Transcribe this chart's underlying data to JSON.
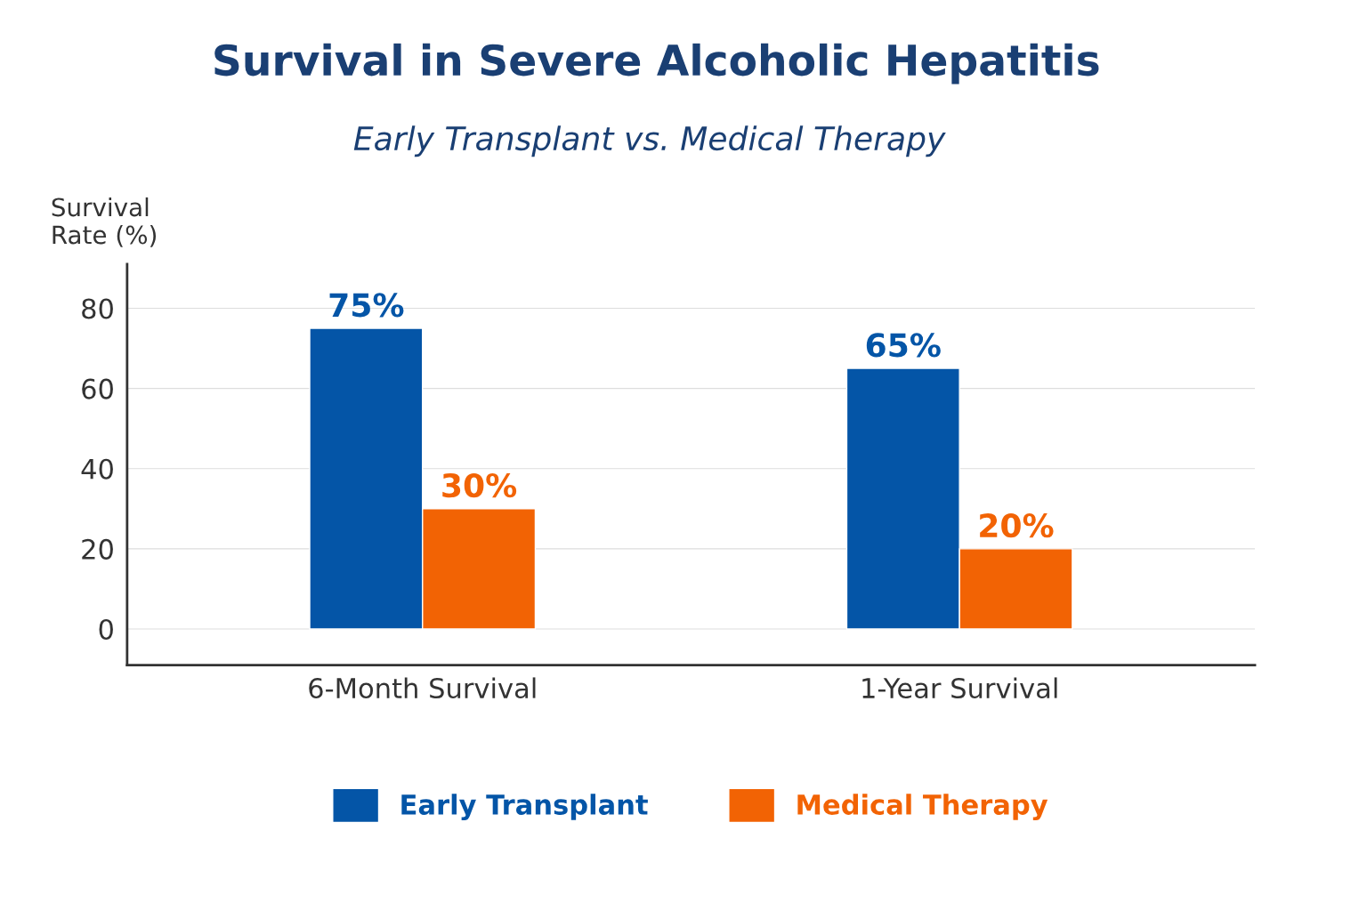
{
  "chart_data": {
    "type": "bar",
    "title": "Survival in Severe Alcoholic Hepatitis",
    "subtitle": "Early Transplant vs. Medical Therapy",
    "ylabel": "Survival\nRate (%)",
    "categories": [
      "6-Month Survival",
      "1-Year Survival"
    ],
    "series": [
      {
        "name": "Early Transplant",
        "color": "#0455a7",
        "values": [
          75,
          65
        ],
        "value_labels": [
          "75%",
          "65%"
        ]
      },
      {
        "name": "Medical Therapy",
        "color": "#f26304",
        "values": [
          30,
          20
        ],
        "value_labels": [
          "30%",
          "20%"
        ]
      }
    ],
    "ylim": [
      -9,
      91
    ],
    "yticks": [
      0,
      20,
      40,
      60,
      80
    ],
    "grid": "y",
    "legend": "bottom"
  }
}
